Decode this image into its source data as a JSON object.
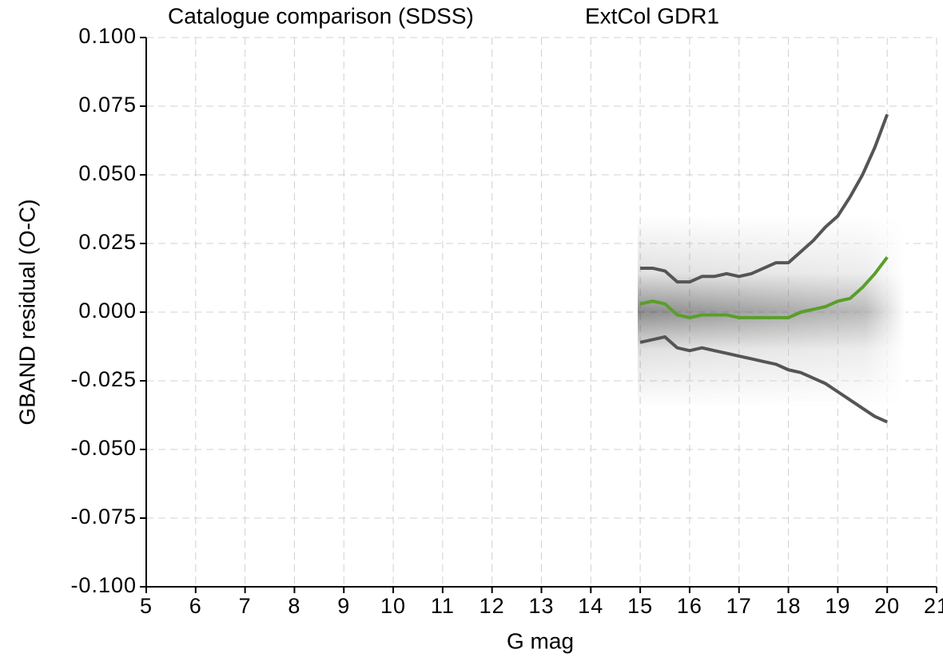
{
  "chart_data": {
    "type": "line",
    "title": "Catalogue comparison (SDSS)",
    "subtitle": "ExtCol GDR1",
    "x_label": "G mag",
    "y_label": "GBAND residual (O-C)",
    "x": [
      15,
      15.25,
      15.5,
      15.75,
      16,
      16.25,
      16.5,
      16.75,
      17,
      17.25,
      17.5,
      17.75,
      18,
      18.25,
      18.5,
      18.75,
      19,
      19.25,
      19.5,
      19.75,
      20
    ],
    "series": [
      {
        "color": "#555555",
        "values": [
          0.016,
          0.016,
          0.015,
          0.011,
          0.011,
          0.013,
          0.013,
          0.014,
          0.013,
          0.014,
          0.016,
          0.018,
          0.018,
          0.022,
          0.026,
          0.031,
          0.035,
          0.042,
          0.05,
          0.06,
          0.072
        ]
      },
      {
        "color": "#5a9e2a",
        "values": [
          0.003,
          0.004,
          0.003,
          -0.001,
          -0.002,
          -0.001,
          -0.001,
          -0.001,
          -0.002,
          -0.002,
          -0.002,
          -0.002,
          -0.002,
          0.0,
          0.001,
          0.002,
          0.004,
          0.005,
          0.009,
          0.014,
          0.02
        ]
      },
      {
        "color": "#555555",
        "values": [
          -0.011,
          -0.01,
          -0.009,
          -0.013,
          -0.014,
          -0.013,
          -0.014,
          -0.015,
          -0.016,
          -0.017,
          -0.018,
          -0.019,
          -0.021,
          -0.022,
          -0.024,
          -0.026,
          -0.029,
          -0.032,
          -0.035,
          -0.038,
          -0.04
        ]
      }
    ],
    "xlim": [
      5,
      21
    ],
    "xticks": [
      5,
      6,
      7,
      8,
      9,
      10,
      11,
      12,
      13,
      14,
      15,
      16,
      17,
      18,
      19,
      20,
      21
    ],
    "ylim": [
      -0.1,
      0.1
    ],
    "yticks": [
      {
        "value": -0.1,
        "label": "-0.100"
      },
      {
        "value": -0.075,
        "label": "-0.075"
      },
      {
        "value": -0.05,
        "label": "-0.050"
      },
      {
        "value": -0.025,
        "label": "-0.025"
      },
      {
        "value": 0,
        "label": "0.000"
      },
      {
        "value": 0.025,
        "label": "0.025"
      },
      {
        "value": 0.05,
        "label": "0.050"
      },
      {
        "value": 0.075,
        "label": "0.075"
      },
      {
        "value": 0.1,
        "label": "0.100"
      }
    ],
    "grid": true
  }
}
